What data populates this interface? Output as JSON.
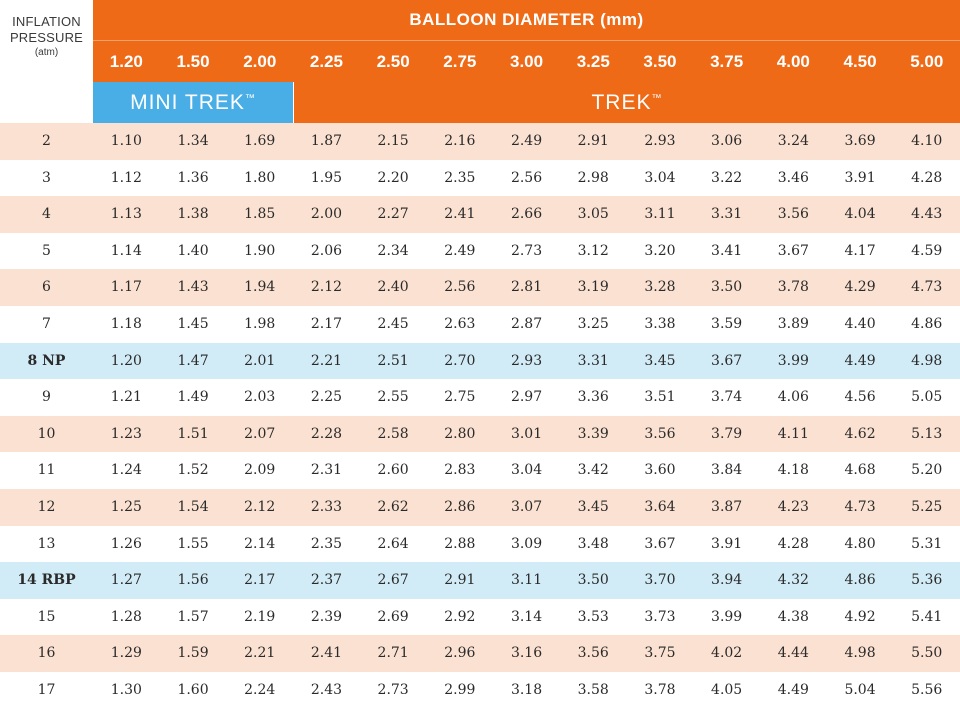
{
  "corner": {
    "line1": "INFLATION",
    "line2": "PRESSURE",
    "line3": "(atm)"
  },
  "header": {
    "title": "BALLOON DIAMETER (mm)"
  },
  "diameters": [
    "1.20",
    "1.50",
    "2.00",
    "2.25",
    "2.50",
    "2.75",
    "3.00",
    "3.25",
    "3.50",
    "3.75",
    "4.00",
    "4.50",
    "5.00"
  ],
  "brands": {
    "mini": "MINI TREK",
    "trek": "TREK",
    "tm": "™"
  },
  "colors": {
    "orange": "#ee6a17",
    "blue": "#49aee6",
    "peach_row": "#fbe1d1",
    "highlight_row": "#d2ecf7"
  },
  "rows": [
    {
      "pressure": "2",
      "style": "peach",
      "values": [
        "1.10",
        "1.34",
        "1.69",
        "1.87",
        "2.15",
        "2.16",
        "2.49",
        "2.91",
        "2.93",
        "3.06",
        "3.24",
        "3.69",
        "4.10"
      ]
    },
    {
      "pressure": "3",
      "style": "white",
      "values": [
        "1.12",
        "1.36",
        "1.80",
        "1.95",
        "2.20",
        "2.35",
        "2.56",
        "2.98",
        "3.04",
        "3.22",
        "3.46",
        "3.91",
        "4.28"
      ]
    },
    {
      "pressure": "4",
      "style": "peach",
      "values": [
        "1.13",
        "1.38",
        "1.85",
        "2.00",
        "2.27",
        "2.41",
        "2.66",
        "3.05",
        "3.11",
        "3.31",
        "3.56",
        "4.04",
        "4.43"
      ]
    },
    {
      "pressure": "5",
      "style": "white",
      "values": [
        "1.14",
        "1.40",
        "1.90",
        "2.06",
        "2.34",
        "2.49",
        "2.73",
        "3.12",
        "3.20",
        "3.41",
        "3.67",
        "4.17",
        "4.59"
      ]
    },
    {
      "pressure": "6",
      "style": "peach",
      "values": [
        "1.17",
        "1.43",
        "1.94",
        "2.12",
        "2.40",
        "2.56",
        "2.81",
        "3.19",
        "3.28",
        "3.50",
        "3.78",
        "4.29",
        "4.73"
      ]
    },
    {
      "pressure": "7",
      "style": "white",
      "values": [
        "1.18",
        "1.45",
        "1.98",
        "2.17",
        "2.45",
        "2.63",
        "2.87",
        "3.25",
        "3.38",
        "3.59",
        "3.89",
        "4.40",
        "4.86"
      ]
    },
    {
      "pressure": "8 NP",
      "style": "blue",
      "values": [
        "1.20",
        "1.47",
        "2.01",
        "2.21",
        "2.51",
        "2.70",
        "2.93",
        "3.31",
        "3.45",
        "3.67",
        "3.99",
        "4.49",
        "4.98"
      ]
    },
    {
      "pressure": "9",
      "style": "white",
      "values": [
        "1.21",
        "1.49",
        "2.03",
        "2.25",
        "2.55",
        "2.75",
        "2.97",
        "3.36",
        "3.51",
        "3.74",
        "4.06",
        "4.56",
        "5.05"
      ]
    },
    {
      "pressure": "10",
      "style": "peach",
      "values": [
        "1.23",
        "1.51",
        "2.07",
        "2.28",
        "2.58",
        "2.80",
        "3.01",
        "3.39",
        "3.56",
        "3.79",
        "4.11",
        "4.62",
        "5.13"
      ]
    },
    {
      "pressure": "11",
      "style": "white",
      "values": [
        "1.24",
        "1.52",
        "2.09",
        "2.31",
        "2.60",
        "2.83",
        "3.04",
        "3.42",
        "3.60",
        "3.84",
        "4.18",
        "4.68",
        "5.20"
      ]
    },
    {
      "pressure": "12",
      "style": "peach",
      "values": [
        "1.25",
        "1.54",
        "2.12",
        "2.33",
        "2.62",
        "2.86",
        "3.07",
        "3.45",
        "3.64",
        "3.87",
        "4.23",
        "4.73",
        "5.25"
      ]
    },
    {
      "pressure": "13",
      "style": "white",
      "values": [
        "1.26",
        "1.55",
        "2.14",
        "2.35",
        "2.64",
        "2.88",
        "3.09",
        "3.48",
        "3.67",
        "3.91",
        "4.28",
        "4.80",
        "5.31"
      ]
    },
    {
      "pressure": "14 RBP",
      "style": "blue",
      "values": [
        "1.27",
        "1.56",
        "2.17",
        "2.37",
        "2.67",
        "2.91",
        "3.11",
        "3.50",
        "3.70",
        "3.94",
        "4.32",
        "4.86",
        "5.36"
      ]
    },
    {
      "pressure": "15",
      "style": "white",
      "values": [
        "1.28",
        "1.57",
        "2.19",
        "2.39",
        "2.69",
        "2.92",
        "3.14",
        "3.53",
        "3.73",
        "3.99",
        "4.38",
        "4.92",
        "5.41"
      ]
    },
    {
      "pressure": "16",
      "style": "peach",
      "values": [
        "1.29",
        "1.59",
        "2.21",
        "2.41",
        "2.71",
        "2.96",
        "3.16",
        "3.56",
        "3.75",
        "4.02",
        "4.44",
        "4.98",
        "5.50"
      ]
    },
    {
      "pressure": "17",
      "style": "white",
      "values": [
        "1.30",
        "1.60",
        "2.24",
        "2.43",
        "2.73",
        "2.99",
        "3.18",
        "3.58",
        "3.78",
        "4.05",
        "4.49",
        "5.04",
        "5.56"
      ]
    }
  ]
}
